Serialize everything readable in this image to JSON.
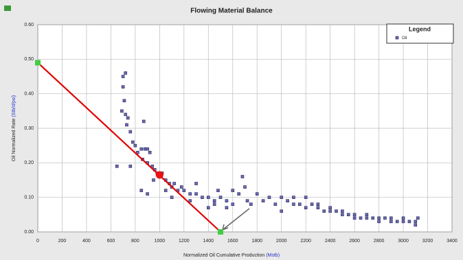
{
  "chart_data": {
    "type": "scatter",
    "title": "Flowing Material Balance",
    "x_label": "Normalized Oil Cumulative Production ",
    "x_unit": "(Mstb)",
    "y_label": "Oil Normalized Rate ",
    "y_unit": "(Stb/d/psi)",
    "legend_title": "Legend",
    "legend": "upper right",
    "xlim": [
      0,
      3400
    ],
    "xticks": [
      0,
      200,
      400,
      600,
      800,
      1000,
      1200,
      1400,
      1600,
      1800,
      2000,
      2200,
      2400,
      2600,
      2800,
      3000,
      3200,
      3400
    ],
    "ylim": [
      0,
      0.6
    ],
    "yticks": [
      {
        "value": 0,
        "label": "0.00"
      },
      {
        "value": 0.1,
        "label": "0.10"
      },
      {
        "value": 0.2,
        "label": "0.20"
      },
      {
        "value": 0.3,
        "label": "0.30"
      },
      {
        "value": 0.4,
        "label": "0.40"
      },
      {
        "value": 0.5,
        "label": "0.50"
      },
      {
        "value": 0.6,
        "label": "0.60"
      }
    ],
    "grid": true,
    "series": [
      {
        "name": "Oil",
        "color": "#6b6bb0",
        "x": [
          700,
          720,
          700,
          710,
          690,
          720,
          740,
          730,
          760,
          870,
          650,
          760,
          780,
          800,
          820,
          850,
          880,
          900,
          920,
          860,
          900,
          940,
          960,
          980,
          1000,
          1020,
          950,
          1050,
          1080,
          1100,
          1120,
          1150,
          1180,
          1200,
          1250,
          1300,
          1350,
          1400,
          1450,
          1480,
          1500,
          1550,
          1600,
          1650,
          1680,
          1700,
          1720,
          1750,
          1800,
          1850,
          1900,
          1950,
          2000,
          2050,
          2100,
          2150,
          2200,
          2250,
          2300,
          2350,
          2400,
          2450,
          2500,
          2550,
          2600,
          2650,
          2700,
          2750,
          2800,
          2850,
          2900,
          2950,
          3000,
          3050,
          3100,
          3120,
          1400,
          1450,
          1550,
          1600,
          1050,
          1100,
          900,
          850,
          1250,
          1300,
          2000,
          2100,
          2200,
          2300,
          2400,
          2500,
          2600,
          2700,
          2800,
          2900,
          3000,
          3100
        ],
        "values": [
          0.45,
          0.46,
          0.42,
          0.38,
          0.35,
          0.34,
          0.33,
          0.31,
          0.29,
          0.32,
          0.19,
          0.19,
          0.26,
          0.25,
          0.23,
          0.24,
          0.24,
          0.24,
          0.23,
          0.21,
          0.2,
          0.19,
          0.18,
          0.17,
          0.16,
          0.17,
          0.15,
          0.15,
          0.14,
          0.13,
          0.14,
          0.12,
          0.13,
          0.12,
          0.11,
          0.11,
          0.1,
          0.1,
          0.09,
          0.12,
          0.1,
          0.09,
          0.12,
          0.11,
          0.16,
          0.13,
          0.09,
          0.08,
          0.11,
          0.09,
          0.1,
          0.08,
          0.1,
          0.09,
          0.08,
          0.08,
          0.07,
          0.08,
          0.07,
          0.06,
          0.07,
          0.06,
          0.05,
          0.05,
          0.05,
          0.04,
          0.05,
          0.04,
          0.04,
          0.04,
          0.04,
          0.03,
          0.04,
          0.03,
          0.03,
          0.04,
          0.07,
          0.08,
          0.07,
          0.08,
          0.12,
          0.1,
          0.11,
          0.12,
          0.09,
          0.14,
          0.06,
          0.1,
          0.1,
          0.08,
          0.06,
          0.06,
          0.04,
          0.04,
          0.03,
          0.03,
          0.03,
          0.02
        ]
      }
    ],
    "fit_line": {
      "color": "#e00000",
      "x": [
        0,
        1500
      ],
      "values": [
        0.49,
        0
      ],
      "end_color": "#44cc44"
    },
    "highlight": {
      "color": "#ee1111",
      "x": 1000,
      "value": 0.165
    }
  }
}
